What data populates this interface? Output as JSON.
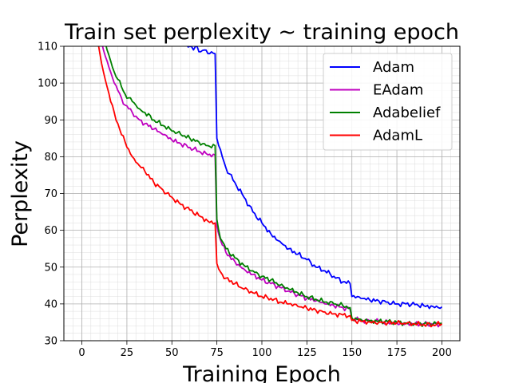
{
  "chart_data": {
    "type": "line",
    "title": "Train set perplexity ~ training epoch",
    "xlabel": "Training Epoch",
    "ylabel": "Perplexity",
    "xlim": [
      -10,
      210
    ],
    "ylim": [
      30,
      110
    ],
    "xticks": [
      0,
      25,
      50,
      75,
      100,
      125,
      150,
      175,
      200
    ],
    "yticks": [
      30,
      40,
      50,
      60,
      70,
      80,
      90,
      100,
      110
    ],
    "grid": true,
    "legend_position": "top-right",
    "series": [
      {
        "name": "Adam",
        "color": "#0000ff",
        "points": [
          [
            55,
            111
          ],
          [
            58,
            110.5
          ],
          [
            60,
            110
          ],
          [
            62,
            109
          ],
          [
            64,
            110
          ],
          [
            66,
            108.5
          ],
          [
            68,
            109
          ],
          [
            70,
            108
          ],
          [
            72,
            108.5
          ],
          [
            74,
            108
          ],
          [
            75,
            85
          ],
          [
            76,
            83
          ],
          [
            78,
            80
          ],
          [
            80,
            77
          ],
          [
            85,
            73
          ],
          [
            90,
            69
          ],
          [
            95,
            65
          ],
          [
            100,
            62
          ],
          [
            105,
            59
          ],
          [
            110,
            57
          ],
          [
            115,
            55
          ],
          [
            120,
            53.5
          ],
          [
            125,
            52
          ],
          [
            130,
            50
          ],
          [
            135,
            49
          ],
          [
            140,
            47.5
          ],
          [
            145,
            46
          ],
          [
            149,
            45.5
          ],
          [
            150,
            42
          ],
          [
            155,
            41.5
          ],
          [
            160,
            41
          ],
          [
            165,
            40.8
          ],
          [
            170,
            40.5
          ],
          [
            175,
            40
          ],
          [
            180,
            40
          ],
          [
            185,
            39.8
          ],
          [
            190,
            39.5
          ],
          [
            195,
            39.3
          ],
          [
            200,
            39.2
          ]
        ]
      },
      {
        "name": "EAdam",
        "color": "#bf00bf",
        "points": [
          [
            11,
            111
          ],
          [
            12,
            109
          ],
          [
            14,
            106
          ],
          [
            16,
            103
          ],
          [
            18,
            100
          ],
          [
            20,
            98
          ],
          [
            22,
            96
          ],
          [
            24,
            94
          ],
          [
            26,
            93
          ],
          [
            28,
            92
          ],
          [
            30,
            91
          ],
          [
            32,
            90
          ],
          [
            35,
            89
          ],
          [
            40,
            87.5
          ],
          [
            45,
            86
          ],
          [
            50,
            84.5
          ],
          [
            55,
            83.5
          ],
          [
            60,
            82.5
          ],
          [
            65,
            81.5
          ],
          [
            70,
            80.5
          ],
          [
            74,
            80.5
          ],
          [
            75,
            61
          ],
          [
            76,
            59
          ],
          [
            78,
            56
          ],
          [
            80,
            54
          ],
          [
            85,
            51.5
          ],
          [
            90,
            49.5
          ],
          [
            95,
            48
          ],
          [
            100,
            46.5
          ],
          [
            105,
            45.5
          ],
          [
            110,
            44.5
          ],
          [
            115,
            43.5
          ],
          [
            120,
            42.5
          ],
          [
            125,
            41.5
          ],
          [
            130,
            40.8
          ],
          [
            135,
            40
          ],
          [
            140,
            39.5
          ],
          [
            145,
            39
          ],
          [
            149,
            38.5
          ],
          [
            150,
            36
          ],
          [
            155,
            35.5
          ],
          [
            160,
            35.3
          ],
          [
            165,
            35.2
          ],
          [
            170,
            35
          ],
          [
            175,
            34.8
          ],
          [
            180,
            34.7
          ],
          [
            185,
            34.6
          ],
          [
            190,
            34.5
          ],
          [
            195,
            34.4
          ],
          [
            200,
            34.5
          ]
        ]
      },
      {
        "name": "Adabelief",
        "color": "#008000",
        "points": [
          [
            13,
            111
          ],
          [
            14,
            109
          ],
          [
            16,
            106
          ],
          [
            18,
            103
          ],
          [
            20,
            101
          ],
          [
            22,
            99
          ],
          [
            24,
            97
          ],
          [
            26,
            96
          ],
          [
            28,
            95
          ],
          [
            30,
            94
          ],
          [
            32,
            93
          ],
          [
            35,
            92
          ],
          [
            40,
            90
          ],
          [
            45,
            88.5
          ],
          [
            50,
            87
          ],
          [
            55,
            86
          ],
          [
            60,
            85
          ],
          [
            65,
            84
          ],
          [
            70,
            83
          ],
          [
            74,
            83
          ],
          [
            75,
            63
          ],
          [
            76,
            60
          ],
          [
            78,
            57
          ],
          [
            80,
            55
          ],
          [
            85,
            52.5
          ],
          [
            90,
            50.5
          ],
          [
            95,
            49
          ],
          [
            100,
            47.5
          ],
          [
            105,
            46.5
          ],
          [
            110,
            45
          ],
          [
            115,
            44
          ],
          [
            120,
            43
          ],
          [
            125,
            42
          ],
          [
            130,
            41.3
          ],
          [
            135,
            40.5
          ],
          [
            140,
            40
          ],
          [
            145,
            39.5
          ],
          [
            149,
            39
          ],
          [
            150,
            36.2
          ],
          [
            155,
            35.8
          ],
          [
            160,
            35.5
          ],
          [
            165,
            35.3
          ],
          [
            170,
            35.2
          ],
          [
            175,
            35
          ],
          [
            180,
            34.8
          ],
          [
            185,
            34.7
          ],
          [
            190,
            34.6
          ],
          [
            195,
            34.5
          ],
          [
            200,
            34.7
          ]
        ]
      },
      {
        "name": "AdamL",
        "color": "#ff0000",
        "points": [
          [
            9,
            111
          ],
          [
            10,
            108
          ],
          [
            12,
            103
          ],
          [
            14,
            99
          ],
          [
            16,
            95
          ],
          [
            18,
            92
          ],
          [
            20,
            89
          ],
          [
            22,
            86
          ],
          [
            24,
            84
          ],
          [
            26,
            82
          ],
          [
            28,
            80
          ],
          [
            30,
            78.5
          ],
          [
            35,
            76
          ],
          [
            40,
            73
          ],
          [
            45,
            71
          ],
          [
            50,
            69
          ],
          [
            55,
            67
          ],
          [
            60,
            65.5
          ],
          [
            65,
            64
          ],
          [
            70,
            62.5
          ],
          [
            74,
            62
          ],
          [
            75,
            51
          ],
          [
            76,
            49.5
          ],
          [
            78,
            48
          ],
          [
            80,
            47
          ],
          [
            85,
            45.5
          ],
          [
            90,
            44
          ],
          [
            95,
            43
          ],
          [
            100,
            42
          ],
          [
            105,
            41.5
          ],
          [
            110,
            40.5
          ],
          [
            115,
            40
          ],
          [
            120,
            39.3
          ],
          [
            125,
            38.8
          ],
          [
            130,
            38.3
          ],
          [
            135,
            37.8
          ],
          [
            140,
            37.3
          ],
          [
            145,
            37
          ],
          [
            149,
            36.8
          ],
          [
            150,
            35.5
          ],
          [
            155,
            35.3
          ],
          [
            160,
            35.1
          ],
          [
            165,
            35
          ],
          [
            170,
            34.9
          ],
          [
            175,
            34.8
          ],
          [
            180,
            34.6
          ],
          [
            185,
            34.5
          ],
          [
            190,
            34.4
          ],
          [
            195,
            34.3
          ],
          [
            200,
            34.6
          ]
        ]
      }
    ]
  }
}
